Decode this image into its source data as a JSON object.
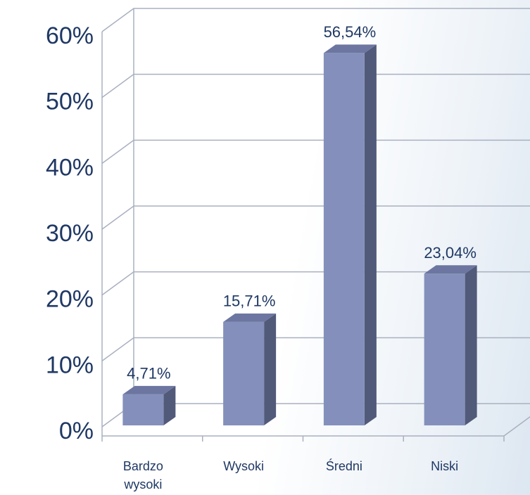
{
  "chart_data": {
    "type": "bar3d",
    "categories": [
      "Bardzo wysoki",
      "Wysoki",
      "Średni",
      "Niski"
    ],
    "values": [
      4.71,
      15.71,
      56.54,
      23.04
    ],
    "value_labels": [
      "4,71%",
      "15,71%",
      "56,54%",
      "23,04%"
    ],
    "color": "#8490bb",
    "ylim": [
      0,
      60
    ],
    "yticks": [
      {
        "value": 0,
        "label": "0%"
      },
      {
        "value": 10,
        "label": "10%"
      },
      {
        "value": 20,
        "label": "20%"
      },
      {
        "value": 30,
        "label": "30%"
      },
      {
        "value": 40,
        "label": "40%"
      },
      {
        "value": 50,
        "label": "50%"
      },
      {
        "value": 60,
        "label": "60%"
      }
    ],
    "grid": true
  }
}
